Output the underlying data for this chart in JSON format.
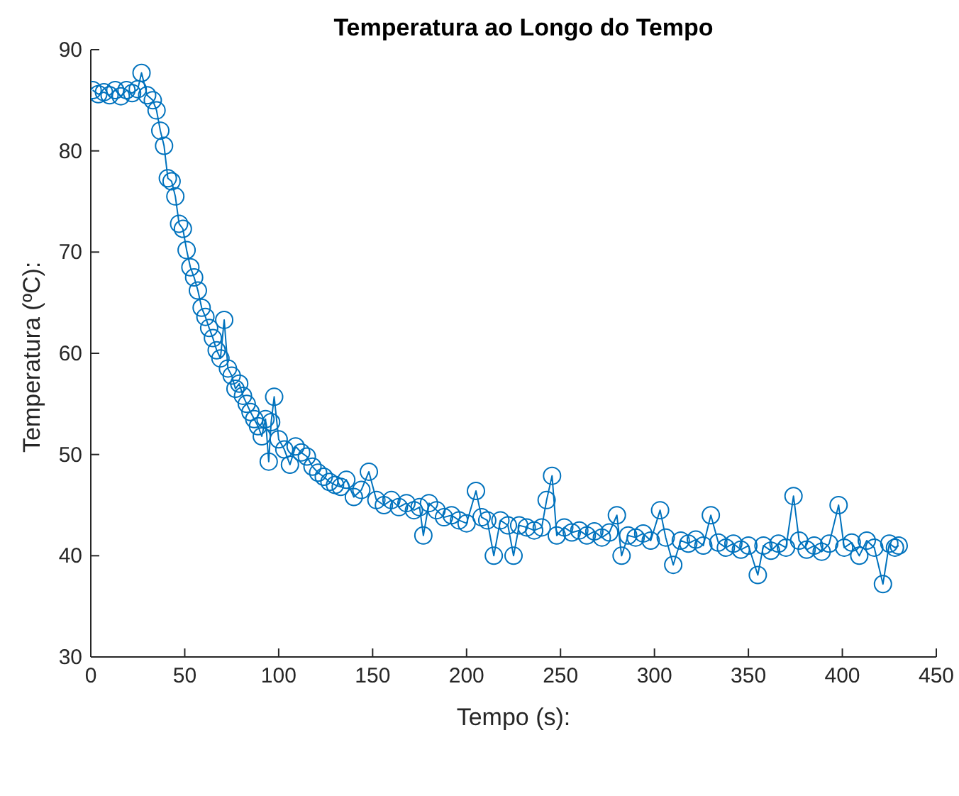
{
  "chart_data": {
    "type": "line",
    "title": "Temperatura ao Longo do Tempo",
    "xlabel": "Tempo (s):",
    "ylabel": "Temperatura (ºC):",
    "marker": "circle",
    "line_style": "solid",
    "grid": false,
    "legend": false,
    "xlim": [
      0,
      450
    ],
    "xticks": [
      0,
      50,
      100,
      150,
      200,
      250,
      300,
      350,
      400,
      450
    ],
    "ylim": [
      30,
      90
    ],
    "yticks": [
      30,
      40,
      50,
      60,
      70,
      80,
      90
    ],
    "series": [
      {
        "color": "#0072bd",
        "x": [
          1,
          4,
          7,
          10,
          13,
          16,
          19,
          22,
          25,
          27,
          30,
          33,
          35,
          37,
          39,
          41,
          43,
          45,
          47,
          49,
          51,
          53,
          55,
          57,
          59,
          61,
          63,
          65,
          67,
          69,
          71,
          73,
          75,
          77,
          79,
          81,
          83,
          85,
          87,
          89,
          91,
          93,
          94.7,
          96,
          97.6,
          100,
          103,
          106,
          109,
          112,
          115,
          118,
          121,
          124,
          127,
          130,
          133,
          136,
          140,
          144,
          148,
          152,
          156,
          160,
          164,
          168,
          172,
          175,
          177,
          180,
          184,
          188,
          192,
          196,
          200,
          205,
          208,
          211,
          214.5,
          218,
          222,
          225,
          228,
          232,
          236,
          240,
          242.6,
          245.5,
          248,
          252,
          256,
          260,
          264,
          268,
          272,
          276,
          280,
          282.5,
          286,
          290,
          294,
          298,
          303,
          306,
          310,
          314,
          318,
          322,
          326,
          330,
          334,
          338,
          342,
          346,
          350,
          355,
          358,
          362,
          366,
          370,
          374,
          377,
          381,
          385,
          389,
          393,
          398,
          401,
          405,
          409,
          413,
          417,
          421.6,
          425,
          428,
          430
        ],
        "values": [
          86,
          85.6,
          85.8,
          85.5,
          86,
          85.4,
          86,
          85.7,
          86.1,
          87.7,
          85.5,
          85,
          84,
          82,
          80.5,
          77.3,
          77,
          75.5,
          72.8,
          72.3,
          70.2,
          68.5,
          67.5,
          66.2,
          64.5,
          63.6,
          62.5,
          61.5,
          60.3,
          59.5,
          63.3,
          58.5,
          57.8,
          56.5,
          57,
          55.8,
          55,
          54.2,
          53.5,
          52.8,
          51.8,
          53.5,
          49.3,
          53.2,
          55.7,
          51.5,
          50.5,
          49,
          50.8,
          50.2,
          49.8,
          48.8,
          48.2,
          47.8,
          47.3,
          47,
          46.8,
          47.5,
          45.8,
          46.5,
          48.3,
          45.5,
          45,
          45.5,
          44.8,
          45.2,
          44.5,
          44.8,
          42,
          45.2,
          44.5,
          43.8,
          44,
          43.5,
          43.2,
          46.4,
          43.8,
          43.5,
          40,
          43.5,
          43,
          40,
          43,
          42.8,
          42.5,
          42.8,
          45.5,
          47.9,
          42,
          42.8,
          42.3,
          42.5,
          42,
          42.4,
          41.8,
          42.3,
          44,
          40,
          42,
          41.8,
          42.2,
          41.5,
          44.5,
          41.8,
          39.1,
          41.5,
          41.2,
          41.6,
          41,
          44,
          41.3,
          40.8,
          41.2,
          40.6,
          41,
          38.1,
          41,
          40.5,
          41.2,
          40.8,
          45.9,
          41.5,
          40.6,
          41,
          40.4,
          41.2,
          45,
          40.8,
          41.3,
          40,
          41.5,
          40.8,
          37.2,
          41.2,
          40.8,
          41
        ]
      }
    ]
  }
}
